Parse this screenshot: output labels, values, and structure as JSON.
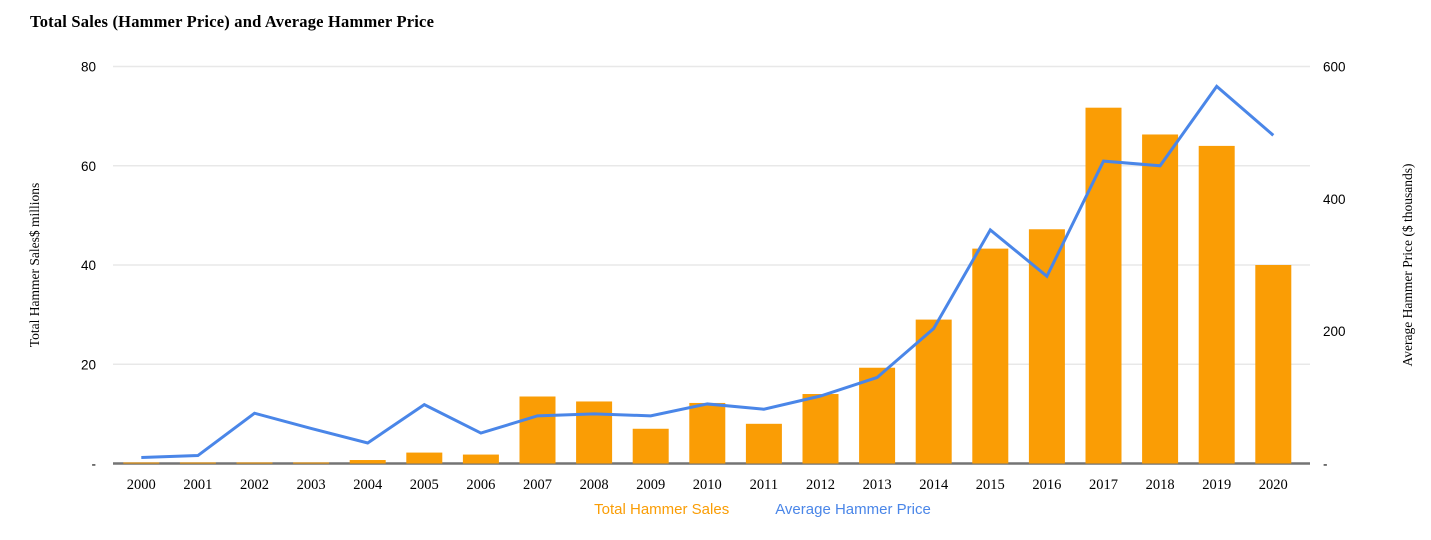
{
  "colors": {
    "bar_orange": "#FA9D05",
    "line_blue": "#4A86E8",
    "gridline": "#E8E8E8",
    "axis_line": "#747474",
    "text": "#000000",
    "background": "#FFFFFF"
  },
  "chart_data": {
    "type": "combo",
    "title": "Total Sales (Hammer Price) and Average Hammer Price",
    "categories": [
      "2000",
      "2001",
      "2002",
      "2003",
      "2004",
      "2005",
      "2006",
      "2007",
      "2008",
      "2009",
      "2010",
      "2011",
      "2012",
      "2013",
      "2014",
      "2015",
      "2016",
      "2017",
      "2018",
      "2019",
      "2020"
    ],
    "series": [
      {
        "name": "Total Hammer Sales",
        "type": "bar",
        "axis": "left",
        "color": "#FA9D05",
        "values": [
          0.1,
          0.1,
          0.1,
          0.1,
          0.7,
          2.2,
          1.8,
          13.5,
          12.5,
          7.0,
          12.2,
          8.0,
          14.0,
          19.3,
          29.0,
          43.3,
          47.2,
          71.7,
          66.3,
          64.0,
          40.0
        ]
      },
      {
        "name": "Average Hammer Price",
        "type": "line",
        "axis": "right",
        "color": "#4A86E8",
        "values": [
          9,
          12,
          76,
          53,
          31,
          89,
          46,
          72,
          75,
          72,
          90,
          82,
          102,
          130,
          204,
          353,
          283,
          457,
          450,
          570,
          496
        ]
      }
    ],
    "left_axis": {
      "title": "Total Hammer Sales$ millions",
      "range": [
        0,
        80
      ],
      "tick_labels": [
        "80",
        "60",
        "40",
        "20",
        "-"
      ],
      "tick_values": [
        80,
        60,
        40,
        20,
        0
      ]
    },
    "right_axis": {
      "title": "Average Hammer Price ($ thousands)",
      "range": [
        0,
        600
      ],
      "tick_labels": [
        "600",
        "400",
        "200",
        "-"
      ],
      "tick_values": [
        600,
        400,
        200,
        0
      ]
    },
    "legend": {
      "position": "bottom",
      "items": [
        "Total Hammer Sales",
        "Average Hammer Price"
      ]
    },
    "grid": "horizontal-only"
  }
}
